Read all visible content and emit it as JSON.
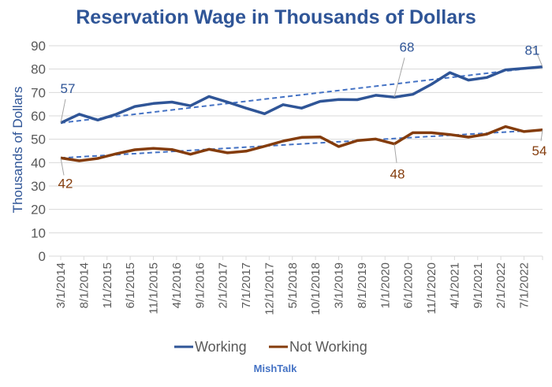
{
  "chart_data": {
    "type": "line",
    "title": "Reservation Wage in Thousands of Dollars",
    "xlabel": "",
    "ylabel": "Thousands of Dollars",
    "ylim": [
      0,
      90
    ],
    "yticks": [
      0,
      10,
      20,
      30,
      40,
      50,
      60,
      70,
      80,
      90
    ],
    "grid": true,
    "legend_position": "bottom",
    "x": [
      "3/1/2014",
      "7/1/2014",
      "11/1/2014",
      "3/1/2015",
      "7/1/2015",
      "11/1/2015",
      "3/1/2016",
      "7/1/2016",
      "11/1/2016",
      "3/1/2017",
      "7/1/2017",
      "11/1/2017",
      "3/1/2018",
      "7/1/2018",
      "11/1/2018",
      "3/1/2019",
      "7/1/2019",
      "11/1/2019",
      "3/1/2020",
      "7/1/2020",
      "11/1/2020",
      "3/1/2021",
      "7/1/2021",
      "11/1/2021",
      "3/1/2022",
      "7/1/2022",
      "11/1/2022"
    ],
    "xtick_labels": [
      "3/1/2014",
      "8/1/2014",
      "1/1/2015",
      "6/1/2015",
      "11/1/2015",
      "4/1/2016",
      "9/1/2016",
      "2/1/2017",
      "7/1/2017",
      "12/1/2017",
      "5/1/2018",
      "10/1/2018",
      "3/1/2019",
      "8/1/2019",
      "1/1/2020",
      "6/1/2020",
      "11/1/2020",
      "4/1/2021",
      "9/1/2021",
      "2/1/2022",
      "7/1/2022"
    ],
    "series": [
      {
        "name": "Working",
        "color": "#2f5597",
        "values": [
          57,
          60.7,
          58.2,
          60.7,
          64,
          65.3,
          65.9,
          64.3,
          68.3,
          65.9,
          63.3,
          60.9,
          64.8,
          63.3,
          66.2,
          67.0,
          66.9,
          68.8,
          68,
          69.2,
          73.5,
          78.5,
          75.3,
          76.4,
          79.7,
          80.3,
          81
        ],
        "trendline": [
          57,
          81
        ],
        "data_labels": [
          {
            "index": 0,
            "text": "57"
          },
          {
            "index": 18,
            "text": "68"
          },
          {
            "index": 26,
            "text": "81"
          }
        ]
      },
      {
        "name": "Not Working",
        "color": "#843c0c",
        "values": [
          42,
          40.8,
          41.8,
          43.8,
          45.5,
          46.1,
          45.6,
          43.6,
          45.7,
          44.2,
          44.9,
          47,
          49.2,
          50.8,
          51,
          46.9,
          49.4,
          50.1,
          48,
          52.8,
          52.8,
          52,
          50.9,
          52.2,
          55.4,
          53.3,
          54
        ],
        "trendline": [
          42,
          54
        ],
        "data_labels": [
          {
            "index": 0,
            "text": "42"
          },
          {
            "index": 18,
            "text": "48"
          },
          {
            "index": 26,
            "text": "54"
          }
        ]
      }
    ]
  },
  "branding": "MishTalk",
  "colors": {
    "trendline": "#4472c4",
    "grid": "#d9d9d9",
    "title": "#2f5597"
  }
}
